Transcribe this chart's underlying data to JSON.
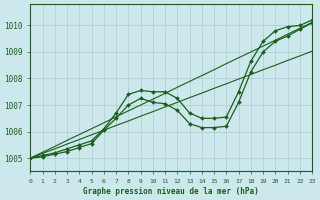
{
  "xlabel": "Graphe pression niveau de la mer (hPa)",
  "background_color": "#cce8ec",
  "grid_color": "#aacccc",
  "line_color": "#1a5e1a",
  "xlim": [
    0,
    23
  ],
  "ylim": [
    1004.5,
    1010.8
  ],
  "yticks": [
    1005,
    1006,
    1007,
    1008,
    1009,
    1010
  ],
  "xticks": [
    0,
    1,
    2,
    3,
    4,
    5,
    6,
    7,
    8,
    9,
    10,
    11,
    12,
    13,
    14,
    15,
    16,
    17,
    18,
    19,
    20,
    21,
    22,
    23
  ],
  "straight1": [
    1005.0,
    1005.22,
    1005.44,
    1005.67,
    1005.89,
    1006.11,
    1006.33,
    1006.56,
    1006.78,
    1007.0,
    1007.22,
    1007.44,
    1007.67,
    1007.89,
    1008.11,
    1008.33,
    1008.56,
    1008.78,
    1009.0,
    1009.22,
    1009.44,
    1009.67,
    1009.89,
    1010.11
  ],
  "straight2": [
    1005.0,
    1005.18,
    1005.35,
    1005.53,
    1005.7,
    1005.88,
    1006.05,
    1006.23,
    1006.4,
    1006.58,
    1006.75,
    1006.93,
    1007.1,
    1007.28,
    1007.45,
    1007.63,
    1007.8,
    1007.98,
    1008.15,
    1008.33,
    1008.5,
    1008.68,
    1008.85,
    1009.03
  ],
  "wavy1": [
    1005.0,
    1005.1,
    1005.2,
    1005.35,
    1005.5,
    1005.65,
    1006.1,
    1006.7,
    1007.4,
    1007.55,
    1007.5,
    1007.5,
    1007.25,
    1006.7,
    1006.5,
    1006.5,
    1006.55,
    1007.5,
    1008.65,
    1009.4,
    1009.8,
    1009.95,
    1010.0,
    1010.2
  ],
  "wavy2": [
    1005.0,
    1005.05,
    1005.15,
    1005.25,
    1005.4,
    1005.55,
    1006.05,
    1006.5,
    1007.0,
    1007.25,
    1007.1,
    1007.05,
    1006.8,
    1006.3,
    1006.15,
    1006.15,
    1006.2,
    1007.1,
    1008.25,
    1009.0,
    1009.4,
    1009.6,
    1009.85,
    1010.1
  ]
}
